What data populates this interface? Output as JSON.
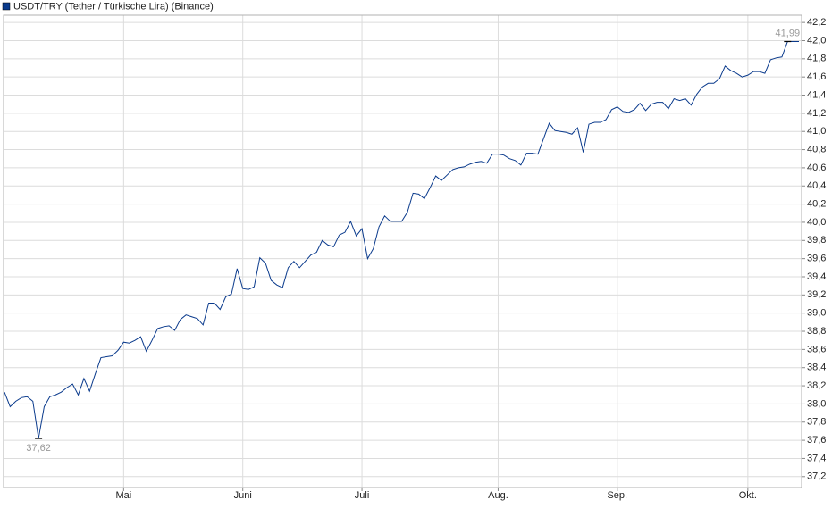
{
  "chart_data": {
    "type": "line",
    "categories": [
      null,
      null,
      null,
      null,
      null,
      null,
      null,
      null,
      null,
      null,
      null,
      null,
      null,
      null,
      null,
      null,
      null,
      null,
      null,
      null,
      null,
      "Mai",
      null,
      null,
      null,
      null,
      null,
      null,
      null,
      null,
      null,
      null,
      null,
      null,
      null,
      null,
      null,
      null,
      null,
      null,
      null,
      null,
      "Juni",
      null,
      null,
      null,
      null,
      null,
      null,
      null,
      null,
      null,
      null,
      null,
      null,
      null,
      null,
      null,
      null,
      null,
      null,
      null,
      null,
      "Juli",
      null,
      null,
      null,
      null,
      null,
      null,
      null,
      null,
      null,
      null,
      null,
      null,
      null,
      null,
      null,
      null,
      null,
      null,
      null,
      null,
      null,
      null,
      null,
      "Aug.",
      null,
      null,
      null,
      null,
      null,
      null,
      null,
      null,
      null,
      null,
      null,
      null,
      null,
      null,
      null,
      null,
      null,
      null,
      null,
      null,
      "Sep.",
      null,
      null,
      null,
      null,
      null,
      null,
      null,
      null,
      null,
      null,
      null,
      null,
      null,
      null,
      null,
      null,
      null,
      null,
      null,
      null,
      null,
      null,
      "Okt.",
      null,
      null,
      null,
      null,
      null,
      null,
      null,
      null,
      null
    ],
    "series": [
      {
        "name": "USDT/TRY (Tether / Türkische Lira) (Binance)",
        "color": "#0a3a8c",
        "values": [
          38.13,
          37.97,
          38.03,
          38.07,
          38.08,
          38.03,
          37.62,
          37.97,
          38.08,
          38.1,
          38.13,
          38.18,
          38.22,
          38.1,
          38.28,
          38.14,
          38.33,
          38.51,
          38.52,
          38.53,
          38.59,
          38.68,
          38.67,
          38.7,
          38.74,
          38.58,
          38.7,
          38.83,
          38.85,
          38.86,
          38.81,
          38.93,
          38.98,
          38.96,
          38.94,
          38.87,
          39.11,
          39.11,
          39.04,
          39.18,
          39.21,
          39.49,
          39.27,
          39.26,
          39.29,
          39.61,
          39.55,
          39.36,
          39.31,
          39.28,
          39.5,
          39.57,
          39.5,
          39.57,
          39.64,
          39.67,
          39.8,
          39.75,
          39.73,
          39.86,
          39.89,
          40.01,
          39.85,
          39.93,
          39.6,
          39.71,
          39.95,
          40.07,
          40.01,
          40.01,
          40.01,
          40.11,
          40.32,
          40.31,
          40.26,
          40.38,
          40.51,
          40.46,
          40.52,
          40.58,
          40.6,
          40.61,
          40.64,
          40.66,
          40.67,
          40.65,
          40.75,
          40.75,
          40.74,
          40.7,
          40.68,
          40.63,
          40.76,
          40.76,
          40.75,
          40.92,
          41.09,
          41.01,
          41.0,
          40.99,
          40.97,
          41.04,
          40.77,
          41.08,
          41.1,
          41.1,
          41.13,
          41.24,
          41.27,
          41.22,
          41.21,
          41.24,
          41.31,
          41.23,
          41.3,
          41.32,
          41.32,
          41.25,
          41.36,
          41.34,
          41.36,
          41.29,
          41.41,
          41.49,
          41.53,
          41.53,
          41.58,
          41.72,
          41.67,
          41.64,
          41.6,
          41.62,
          41.66,
          41.66,
          41.64,
          41.79,
          41.81,
          41.82,
          41.99,
          41.99,
          41.99
        ],
        "value_labels": [
          null,
          null,
          null,
          null,
          null,
          null,
          "37,62",
          null,
          null,
          null,
          null,
          null,
          null,
          null,
          null,
          null,
          null,
          null,
          null,
          null,
          null,
          null,
          null,
          null,
          null,
          null,
          null,
          null,
          null,
          null,
          null,
          null,
          null,
          null,
          null,
          null,
          null,
          null,
          null,
          null,
          null,
          null,
          null,
          null,
          null,
          null,
          null,
          null,
          null,
          null,
          null,
          null,
          null,
          null,
          null,
          null,
          null,
          null,
          null,
          null,
          null,
          null,
          null,
          null,
          null,
          null,
          null,
          null,
          null,
          null,
          null,
          null,
          null,
          null,
          null,
          null,
          null,
          null,
          null,
          null,
          null,
          null,
          null,
          null,
          null,
          null,
          null,
          null,
          null,
          null,
          null,
          null,
          null,
          null,
          null,
          null,
          null,
          null,
          null,
          null,
          null,
          null,
          null,
          null,
          null,
          null,
          null,
          null,
          null,
          null,
          null,
          null,
          null,
          null,
          null,
          null,
          null,
          null,
          null,
          null,
          null,
          null,
          null,
          null,
          null,
          null,
          null,
          null,
          null,
          null,
          null,
          null,
          null,
          null,
          null,
          null,
          null,
          null,
          "41,99",
          null,
          null
        ]
      }
    ],
    "ylim": [
      37.08,
      42.28
    ],
    "yticks": [
      {
        "value": 37.2,
        "label": "37,2"
      },
      {
        "value": 37.4,
        "label": "37,4"
      },
      {
        "value": 37.6,
        "label": "37,6"
      },
      {
        "value": 37.8,
        "label": "37,8"
      },
      {
        "value": 38.0,
        "label": "38,0"
      },
      {
        "value": 38.2,
        "label": "38,2"
      },
      {
        "value": 38.4,
        "label": "38,4"
      },
      {
        "value": 38.6,
        "label": "38,6"
      },
      {
        "value": 38.8,
        "label": "38,8"
      },
      {
        "value": 39.0,
        "label": "39,0"
      },
      {
        "value": 39.2,
        "label": "39,2"
      },
      {
        "value": 39.4,
        "label": "39,4"
      },
      {
        "value": 39.6,
        "label": "39,6"
      },
      {
        "value": 39.8,
        "label": "39,8"
      },
      {
        "value": 40.0,
        "label": "40,0"
      },
      {
        "value": 40.2,
        "label": "40,2"
      },
      {
        "value": 40.4,
        "label": "40,4"
      },
      {
        "value": 40.6,
        "label": "40,6"
      },
      {
        "value": 40.8,
        "label": "40,8"
      },
      {
        "value": 41.0,
        "label": "41,0"
      },
      {
        "value": 41.2,
        "label": "41,2"
      },
      {
        "value": 41.4,
        "label": "41,4"
      },
      {
        "value": 41.6,
        "label": "41,6"
      },
      {
        "value": 41.8,
        "label": "41,8"
      },
      {
        "value": 42.0,
        "label": "42,0"
      },
      {
        "value": 42.2,
        "label": "42,2"
      }
    ],
    "grid": true
  }
}
